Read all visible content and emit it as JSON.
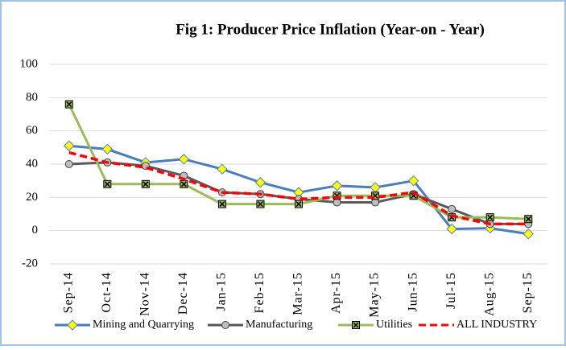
{
  "chart_data": {
    "type": "line",
    "title": "Fig 1: Producer Price Inflation (Year-on - Year)",
    "categories": [
      "Sep-14",
      "Oct-14",
      "Nov-14",
      "Dec-14",
      "Jan-15",
      "Feb-15",
      "Mar-15",
      "Apr-15",
      "May-15",
      "Jun-15",
      "Jul-15",
      "Aug-15",
      "Sep-15"
    ],
    "series": [
      {
        "name": "Mining and Quarrying",
        "color": "#4a7ebb",
        "marker": "diamond",
        "values": [
          51,
          49,
          41,
          43,
          37,
          29,
          23,
          27,
          26,
          30,
          1,
          1.5,
          -2
        ]
      },
      {
        "name": "Manufacturing",
        "color": "#595959",
        "marker": "circle",
        "values": [
          40,
          41,
          39,
          33,
          23,
          22,
          19,
          17,
          17,
          22,
          13,
          4,
          4
        ]
      },
      {
        "name": "Utilities",
        "color": "#9bbb59",
        "marker": "square",
        "values": [
          76,
          28,
          28,
          28,
          16,
          16,
          16,
          21,
          21,
          21,
          8,
          8,
          7
        ]
      },
      {
        "name": "ALL INDUSTRY",
        "color": "#ff0000",
        "dashed": true,
        "values": [
          47,
          41,
          38,
          31,
          23,
          22,
          19,
          20,
          20,
          23,
          9,
          4,
          4
        ]
      }
    ],
    "ylim": [
      -20,
      100
    ],
    "yticks": [
      -20,
      0,
      20,
      40,
      60,
      80,
      100
    ],
    "grid": true,
    "legend": "bottom"
  }
}
